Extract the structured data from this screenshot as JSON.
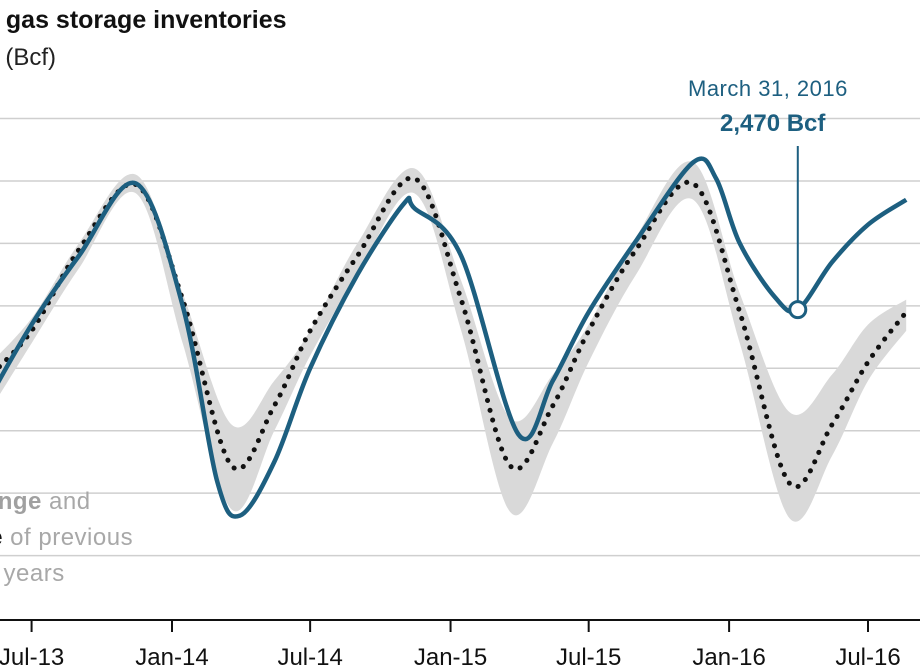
{
  "header": {
    "title": "l gas storage  inventories",
    "subtitle": "t  (Bcf)"
  },
  "annotation": {
    "date": "March 31, 2016",
    "value": "2,470 Bcf"
  },
  "legend": {
    "line1_bold": "range",
    "line1_rest": " and",
    "line2_bold": "ge",
    "line2_rest": " of previous",
    "line3": "re  years"
  },
  "colors": {
    "actual": "#1d5f80",
    "range": "#d9d9d9",
    "average": "#111111",
    "grid": "#cfcfcf"
  },
  "chart_data": {
    "type": "line",
    "title": "l gas storage  inventories",
    "ylabel": "t  (Bcf)",
    "x_ticks": [
      "Jul-13",
      "Jan-14",
      "Jul-14",
      "Jan-15",
      "Jul-15",
      "Jan-16",
      "Jul-16"
    ],
    "grid": true,
    "series": [
      {
        "name": "range",
        "kind": "band",
        "x": [
          "2013-05-01",
          "2013-07-01",
          "2013-09-01",
          "2013-11-15",
          "2014-01-15",
          "2014-03-20",
          "2014-05-15",
          "2014-07-01",
          "2014-09-01",
          "2014-11-15",
          "2015-01-15",
          "2015-03-20",
          "2015-05-15",
          "2015-07-01",
          "2015-09-01",
          "2015-11-15",
          "2016-01-15",
          "2016-03-20",
          "2016-05-15",
          "2016-07-01",
          "2016-08-20"
        ],
        "upper": [
          2000,
          2400,
          3000,
          3550,
          2600,
          1550,
          1900,
          2300,
          3000,
          3600,
          2700,
          1600,
          1950,
          2350,
          3050,
          3650,
          2600,
          1650,
          1950,
          2350,
          2550
        ],
        "lower": [
          1600,
          2200,
          2800,
          3400,
          2200,
          870,
          1500,
          2100,
          2750,
          3400,
          2300,
          850,
          1400,
          2050,
          2750,
          3350,
          2200,
          800,
          1300,
          1900,
          2300
        ]
      },
      {
        "name": "average",
        "kind": "dotted",
        "x": [
          "2013-05-01",
          "2013-07-01",
          "2013-09-01",
          "2013-11-15",
          "2014-01-15",
          "2014-03-20",
          "2014-05-15",
          "2014-07-01",
          "2014-09-01",
          "2014-11-15",
          "2015-01-15",
          "2015-03-20",
          "2015-05-15",
          "2015-07-01",
          "2015-09-01",
          "2015-11-15",
          "2016-01-15",
          "2016-03-20",
          "2016-05-15",
          "2016-07-01",
          "2016-08-20"
        ],
        "values": [
          1900,
          2300,
          2950,
          3470,
          2550,
          1220,
          1700,
          2300,
          2900,
          3520,
          2550,
          1220,
          1700,
          2300,
          2950,
          3480,
          2450,
          1080,
          1550,
          2050,
          2450
        ]
      },
      {
        "name": "actual",
        "kind": "solid",
        "x": [
          "2013-05-01",
          "2013-07-01",
          "2013-09-01",
          "2013-11-15",
          "2014-01-15",
          "2014-03-01",
          "2014-03-31",
          "2014-05-15",
          "2014-07-01",
          "2014-09-01",
          "2014-11-01",
          "2014-11-15",
          "2015-01-15",
          "2015-03-31",
          "2015-05-15",
          "2015-07-01",
          "2015-09-01",
          "2015-11-15",
          "2015-12-15",
          "2016-01-15",
          "2016-03-01",
          "2016-03-31",
          "2016-05-15",
          "2016-07-01",
          "2016-08-20"
        ],
        "values": [
          1700,
          2350,
          2900,
          3480,
          2500,
          1100,
          820,
          1250,
          2000,
          2750,
          3320,
          3280,
          2900,
          1470,
          1900,
          2450,
          3020,
          3650,
          3520,
          3000,
          2570,
          2470,
          2850,
          3150,
          3350
        ]
      }
    ],
    "markers": [
      {
        "x": "2016-03-31",
        "y": 2470,
        "label": "March 31, 2016",
        "value_label": "2,470 Bcf"
      }
    ]
  }
}
